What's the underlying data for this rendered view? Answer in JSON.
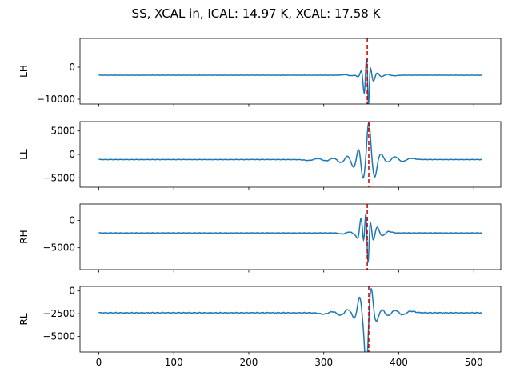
{
  "figure": {
    "suptitle": "SS, XCAL in, ICAL: 14.97 K, XCAL: 17.58 K"
  },
  "colors": {
    "series": "#1f77b4",
    "marker": "#cc0000",
    "axes": "#000000"
  },
  "chart_data": [
    {
      "type": "line",
      "ylabel": "LH",
      "xlim": [
        -25,
        536
      ],
      "ylim": [
        -11500,
        9000
      ],
      "yticks": [
        -10000,
        0
      ],
      "yticklabels": [
        "−10000",
        "0"
      ],
      "baseline": -2500,
      "features": [
        [
          330,
          250,
          6
        ],
        [
          336,
          -300,
          6
        ],
        [
          342,
          200,
          5
        ],
        [
          347,
          -900,
          4
        ],
        [
          351,
          2600,
          3.5
        ],
        [
          354,
          -7500,
          2.5
        ],
        [
          357,
          7500,
          2
        ],
        [
          359.5,
          -12000,
          1.5
        ],
        [
          362,
          3000,
          2.5
        ],
        [
          366,
          -2200,
          3
        ],
        [
          371,
          900,
          4
        ],
        [
          377,
          -600,
          5
        ],
        [
          384,
          400,
          6
        ],
        [
          392,
          -200,
          7
        ]
      ],
      "vline_x": 358,
      "show_xticklabels": false
    },
    {
      "type": "line",
      "ylabel": "LL",
      "xlim": [
        -25,
        536
      ],
      "ylim": [
        -7000,
        7000
      ],
      "yticks": [
        -5000,
        0,
        5000
      ],
      "yticklabels": [
        "−5000",
        "0",
        "5000"
      ],
      "baseline": -1100,
      "features": [
        [
          280,
          -200,
          8
        ],
        [
          292,
          250,
          7
        ],
        [
          303,
          -300,
          7
        ],
        [
          313,
          350,
          6
        ],
        [
          323,
          -700,
          6
        ],
        [
          332,
          900,
          5
        ],
        [
          340,
          -1800,
          5
        ],
        [
          347,
          3200,
          4
        ],
        [
          352,
          -4600,
          4
        ],
        [
          360,
          8000,
          3.5
        ],
        [
          368,
          -3800,
          4
        ],
        [
          376,
          1300,
          5
        ],
        [
          385,
          -600,
          6
        ],
        [
          395,
          700,
          6
        ],
        [
          405,
          -500,
          7
        ],
        [
          415,
          300,
          8
        ]
      ],
      "vline_x": 360,
      "show_xticklabels": false
    },
    {
      "type": "line",
      "ylabel": "RH",
      "xlim": [
        -25,
        536
      ],
      "ylim": [
        -9000,
        3000
      ],
      "yticks": [
        -5000,
        0
      ],
      "yticklabels": [
        "−5000",
        "0"
      ],
      "baseline": -2300,
      "features": [
        [
          325,
          -200,
          6
        ],
        [
          335,
          250,
          6
        ],
        [
          341,
          -300,
          5
        ],
        [
          346,
          -1200,
          3
        ],
        [
          350,
          3500,
          3
        ],
        [
          353,
          -3000,
          2.5
        ],
        [
          356,
          4500,
          2
        ],
        [
          359,
          -6500,
          1.8
        ],
        [
          362,
          2500,
          2.5
        ],
        [
          366,
          -1700,
          3
        ],
        [
          371,
          1200,
          4
        ],
        [
          378,
          -600,
          5
        ],
        [
          386,
          300,
          6
        ]
      ],
      "vline_x": 358,
      "show_xticklabels": false
    },
    {
      "type": "line",
      "ylabel": "RL",
      "xlim": [
        -25,
        536
      ],
      "ylim": [
        -6700,
        500
      ],
      "yticks": [
        -5000,
        -2500,
        0
      ],
      "yticklabels": [
        "−5000",
        "−2500",
        "0"
      ],
      "xticks": [
        0,
        100,
        200,
        300,
        400,
        500
      ],
      "xticklabels": [
        "0",
        "100",
        "200",
        "300",
        "400",
        "500"
      ],
      "baseline": -2400,
      "features": [
        [
          300,
          -150,
          8
        ],
        [
          312,
          150,
          7
        ],
        [
          322,
          -300,
          6
        ],
        [
          333,
          400,
          6
        ],
        [
          341,
          -700,
          5
        ],
        [
          348,
          2000,
          4
        ],
        [
          353,
          -1500,
          3.5
        ],
        [
          357,
          -6000,
          3
        ],
        [
          363,
          2800,
          3.5
        ],
        [
          370,
          -1000,
          4
        ],
        [
          378,
          400,
          5
        ],
        [
          386,
          -400,
          6
        ],
        [
          395,
          350,
          7
        ],
        [
          405,
          -300,
          7
        ],
        [
          415,
          200,
          8
        ]
      ],
      "vline_x": 360,
      "show_xticklabels": true
    }
  ]
}
